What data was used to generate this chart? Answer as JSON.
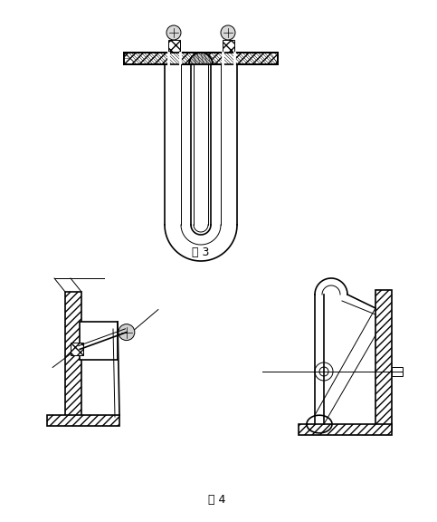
{
  "fig3_label": "图 3",
  "fig4_label": "图 4",
  "bg_color": "#ffffff",
  "line_color": "#000000",
  "fig_width": 4.83,
  "fig_height": 5.76,
  "label_fontsize": 9
}
